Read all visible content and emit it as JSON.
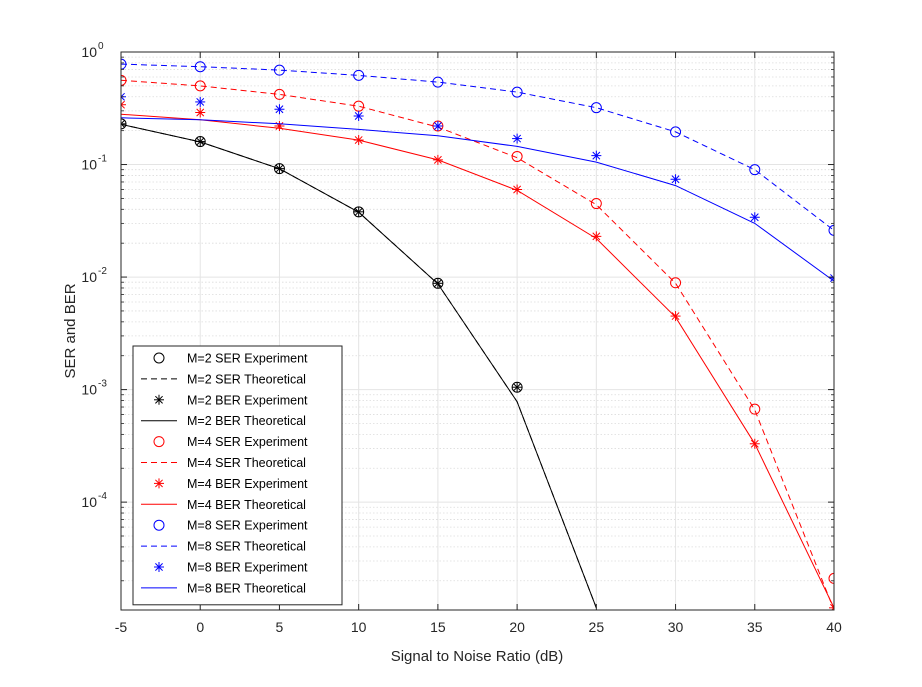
{
  "chart_data": {
    "type": "line",
    "xlabel": "Signal to Noise Ratio (dB)",
    "ylabel": "SER and BER",
    "xlim": [
      -5,
      40
    ],
    "ylim": [
      1.1e-05,
      1
    ],
    "yscale": "log",
    "grid": true,
    "minor_grid": true,
    "legend_position": "bottom-left",
    "x_ticks": [
      -5,
      0,
      5,
      10,
      15,
      20,
      25,
      30,
      35,
      40
    ],
    "x_tick_labels": [
      "-5",
      "0",
      "5",
      "10",
      "15",
      "20",
      "25",
      "30",
      "35",
      "40"
    ],
    "y_ticks": [
      {
        "value": 1,
        "base": "10",
        "exp": "0"
      },
      {
        "value": 0.1,
        "base": "10",
        "exp": "-1"
      },
      {
        "value": 0.01,
        "base": "10",
        "exp": "-2"
      },
      {
        "value": 0.001,
        "base": "10",
        "exp": "-3"
      },
      {
        "value": 0.0001,
        "base": "10",
        "exp": "-4"
      }
    ],
    "series": [
      {
        "name": "M=2 SER Experiment",
        "color": "#000000",
        "style": "marker",
        "marker": "circle",
        "x": [
          -5,
          0,
          5,
          10,
          15,
          20
        ],
        "values": [
          0.23,
          0.16,
          0.092,
          0.038,
          0.0088,
          0.00105
        ]
      },
      {
        "name": "M=2 SER Theoretical",
        "color": "#000000",
        "style": "dashed",
        "x": [
          -5,
          0,
          5,
          10,
          15,
          20,
          25
        ],
        "values": [
          0.228,
          0.159,
          0.0918,
          0.0377,
          0.0087,
          0.00078,
          1.15e-05
        ]
      },
      {
        "name": "M=2 BER Experiment",
        "color": "#000000",
        "style": "marker",
        "marker": "star",
        "x": [
          -5,
          0,
          5,
          10,
          15,
          20
        ],
        "values": [
          0.23,
          0.16,
          0.092,
          0.038,
          0.0088,
          0.00105
        ]
      },
      {
        "name": "M=2 BER Theoretical",
        "color": "#000000",
        "style": "solid",
        "x": [
          -5,
          0,
          5,
          10,
          15,
          20,
          25
        ],
        "values": [
          0.228,
          0.159,
          0.0918,
          0.0377,
          0.0087,
          0.00078,
          1.15e-05
        ]
      },
      {
        "name": "M=4 SER Experiment",
        "color": "#ff0000",
        "style": "marker",
        "marker": "circle",
        "x": [
          -5,
          0,
          5,
          10,
          15,
          20,
          25,
          30,
          35,
          40
        ],
        "values": [
          0.56,
          0.5,
          0.42,
          0.33,
          0.22,
          0.118,
          0.045,
          0.0089,
          0.00067,
          2.1e-05
        ]
      },
      {
        "name": "M=4 SER Theoretical",
        "color": "#ff0000",
        "style": "dashed",
        "x": [
          -5,
          0,
          5,
          10,
          15,
          20,
          25,
          30,
          35,
          40
        ],
        "values": [
          0.56,
          0.5,
          0.42,
          0.33,
          0.215,
          0.115,
          0.044,
          0.0088,
          0.00066,
          1.1e-05
        ]
      },
      {
        "name": "M=4 BER Experiment",
        "color": "#ff0000",
        "style": "marker",
        "marker": "star",
        "x": [
          -5,
          0,
          5,
          10,
          15,
          20,
          25,
          30,
          35,
          40
        ],
        "values": [
          0.34,
          0.29,
          0.22,
          0.165,
          0.11,
          0.06,
          0.023,
          0.0045,
          0.00033,
          1.15e-05
        ]
      },
      {
        "name": "M=4 BER Theoretical",
        "color": "#ff0000",
        "style": "solid",
        "x": [
          -5,
          0,
          5,
          10,
          15,
          20,
          25,
          30,
          35,
          40
        ],
        "values": [
          0.28,
          0.25,
          0.21,
          0.165,
          0.11,
          0.059,
          0.022,
          0.0044,
          0.00033,
          1.15e-05
        ]
      },
      {
        "name": "M=8 SER Experiment",
        "color": "#0000ff",
        "style": "marker",
        "marker": "circle",
        "x": [
          -5,
          0,
          5,
          10,
          15,
          20,
          25,
          30,
          35,
          40
        ],
        "values": [
          0.78,
          0.74,
          0.69,
          0.62,
          0.54,
          0.44,
          0.32,
          0.195,
          0.09,
          0.026
        ]
      },
      {
        "name": "M=8 SER Theoretical",
        "color": "#0000ff",
        "style": "dashed",
        "x": [
          -5,
          0,
          5,
          10,
          15,
          20,
          25,
          30,
          35,
          40
        ],
        "values": [
          0.78,
          0.74,
          0.69,
          0.62,
          0.54,
          0.44,
          0.32,
          0.195,
          0.09,
          0.026
        ]
      },
      {
        "name": "M=8 BER Experiment",
        "color": "#0000ff",
        "style": "marker",
        "marker": "star",
        "x": [
          -5,
          0,
          5,
          10,
          15,
          20,
          25,
          30,
          35,
          40
        ],
        "values": [
          0.4,
          0.36,
          0.31,
          0.27,
          0.22,
          0.17,
          0.12,
          0.074,
          0.034,
          0.0098
        ]
      },
      {
        "name": "M=8 BER Theoretical",
        "color": "#0000ff",
        "style": "solid",
        "x": [
          -5,
          0,
          5,
          10,
          15,
          20,
          25,
          30,
          35,
          40
        ],
        "values": [
          0.26,
          0.25,
          0.23,
          0.205,
          0.18,
          0.145,
          0.105,
          0.065,
          0.03,
          0.0092
        ]
      }
    ]
  }
}
